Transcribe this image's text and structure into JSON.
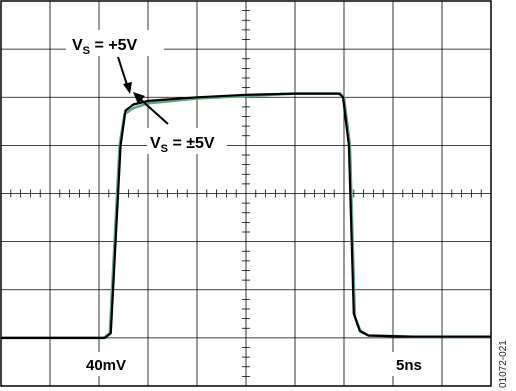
{
  "chart_data": {
    "type": "line",
    "grid": true,
    "divisions": {
      "x": 10,
      "y": 8
    },
    "x_range": [
      0,
      50
    ],
    "x_unit_per_div": "5ns",
    "y_range": [
      -160,
      160
    ],
    "y_unit_per_div": "40mV",
    "series": [
      {
        "name": "V_S = +5V",
        "color": "#000000",
        "points": [
          [
            0,
            -120
          ],
          [
            10.6,
            -120
          ],
          [
            11.2,
            -116
          ],
          [
            12.2,
            40
          ],
          [
            12.7,
            69
          ],
          [
            13.5,
            74
          ],
          [
            15,
            77
          ],
          [
            20,
            80
          ],
          [
            25,
            82
          ],
          [
            30,
            83
          ],
          [
            34.5,
            83
          ],
          [
            34.9,
            80
          ],
          [
            35.5,
            40
          ],
          [
            36,
            -100
          ],
          [
            36.6,
            -114
          ],
          [
            37.5,
            -118
          ],
          [
            42,
            -119
          ],
          [
            50,
            -119
          ]
        ]
      },
      {
        "name": "V_S = ±5V",
        "color": "#5ba882",
        "points": [
          [
            0,
            -120
          ],
          [
            10.5,
            -120
          ],
          [
            11.1,
            -116
          ],
          [
            12.1,
            40
          ],
          [
            12.6,
            66
          ],
          [
            13.5,
            71
          ],
          [
            15,
            75
          ],
          [
            20,
            79
          ],
          [
            25,
            81
          ],
          [
            30,
            83
          ],
          [
            34.6,
            83
          ],
          [
            35,
            80
          ],
          [
            35.6,
            40
          ],
          [
            36.1,
            -102
          ],
          [
            36.7,
            -115
          ],
          [
            37.5,
            -118
          ],
          [
            42,
            -119
          ],
          [
            50,
            -119
          ]
        ]
      }
    ],
    "annotations": {
      "vs_plus": {
        "V": "V",
        "sub": "S",
        "rest": " = +5V"
      },
      "vs_pm": {
        "V": "V",
        "sub": "S",
        "rest": " = ±5V"
      }
    },
    "scale_labels": {
      "vertical": "40mV",
      "horizontal": "5ns"
    }
  },
  "figure_id": "01072-021"
}
